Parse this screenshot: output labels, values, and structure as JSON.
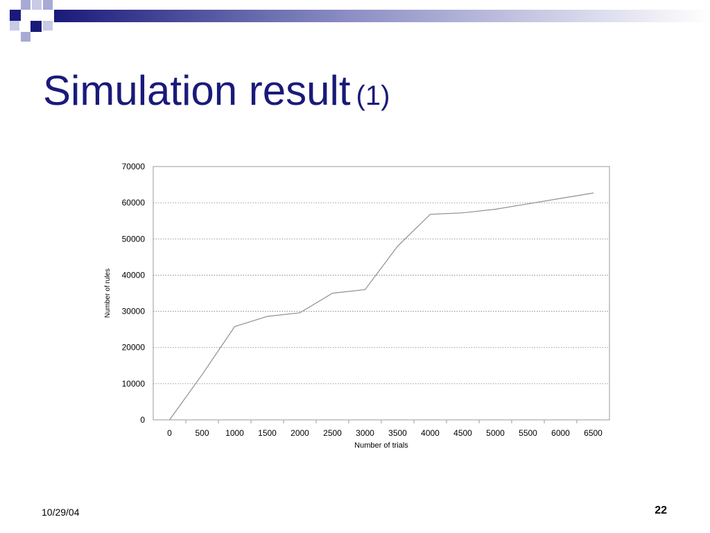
{
  "slide": {
    "title": "Simulation result",
    "title_suffix": "(1)",
    "date": "10/29/04",
    "page_number": "22",
    "colors": {
      "title": "#1a1a7a",
      "deco_dark": "#1a1a7a",
      "deco_light": "#a8aad6"
    }
  },
  "chart_data": {
    "type": "line",
    "xlabel": "Number of trials",
    "ylabel": "Number of rules",
    "x": [
      0,
      500,
      1000,
      1500,
      2000,
      2500,
      3000,
      3500,
      4000,
      4500,
      5000,
      5500,
      6000,
      6500
    ],
    "series": [
      {
        "values": [
          0,
          12500,
          25800,
          28600,
          29600,
          35000,
          36000,
          48000,
          56800,
          57200,
          58200,
          59700,
          61200,
          62700
        ]
      }
    ],
    "xticks": [
      "0",
      "500",
      "1000",
      "1500",
      "2000",
      "2500",
      "3000",
      "3500",
      "4000",
      "4500",
      "5000",
      "5500",
      "6000",
      "6500"
    ],
    "yticks": [
      "0",
      "10000",
      "20000",
      "30000",
      "40000",
      "50000",
      "60000",
      "70000"
    ],
    "ylim": [
      0,
      70000
    ],
    "grid": "horizontal dotted",
    "legend": "none",
    "line_color": "#909090"
  }
}
